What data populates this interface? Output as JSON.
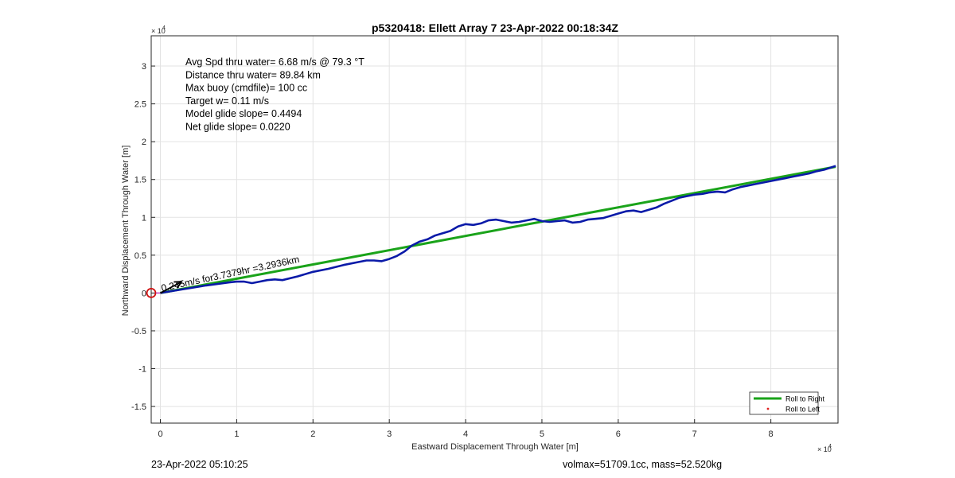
{
  "chart_data": {
    "type": "line",
    "title": "p5320418: Ellett Array 7 23-Apr-2022 00:18:34Z",
    "xlabel": "Eastward Displacement Through Water [m]",
    "ylabel": "Northward Displacement Through Water [m]",
    "x_exponent_label": "× 10",
    "x_exponent_power": "4",
    "y_exponent_label": "× 10",
    "y_exponent_power": "4",
    "xlim": [
      -0.12,
      8.88
    ],
    "ylim": [
      -1.72,
      3.4
    ],
    "xticks": [
      0,
      1,
      2,
      3,
      4,
      5,
      6,
      7,
      8
    ],
    "yticks": [
      -1.5,
      -1,
      -0.5,
      0,
      0.5,
      1,
      1.5,
      2,
      2.5,
      3
    ],
    "xtick_labels": [
      "0",
      "1",
      "2",
      "3",
      "4",
      "5",
      "6",
      "7",
      "8"
    ],
    "ytick_labels": [
      "-1.5",
      "-1",
      "-0.5",
      "0",
      "0.5",
      "1",
      "1.5",
      "2",
      "2.5",
      "3"
    ],
    "grid": true,
    "legend_position": "bottom-right",
    "series": [
      {
        "name": "Roll to Right",
        "color": "#1aa31a",
        "x": [
          0.0,
          8.85
        ],
        "y": [
          0.0,
          1.67
        ]
      },
      {
        "color": "#0a1aa8",
        "x": [
          0.0,
          0.3,
          0.6,
          0.9,
          1.0,
          1.1,
          1.2,
          1.3,
          1.4,
          1.5,
          1.6,
          1.8,
          2.0,
          2.2,
          2.4,
          2.6,
          2.7,
          2.8,
          2.9,
          3.0,
          3.1,
          3.2,
          3.3,
          3.4,
          3.5,
          3.6,
          3.7,
          3.8,
          3.9,
          4.0,
          4.1,
          4.2,
          4.3,
          4.4,
          4.5,
          4.6,
          4.7,
          4.8,
          4.9,
          5.0,
          5.1,
          5.2,
          5.3,
          5.4,
          5.5,
          5.6,
          5.7,
          5.8,
          5.9,
          6.0,
          6.1,
          6.2,
          6.3,
          6.4,
          6.5,
          6.6,
          6.7,
          6.8,
          6.9,
          7.0,
          7.1,
          7.2,
          7.3,
          7.4,
          7.5,
          7.6,
          7.7,
          7.8,
          7.9,
          8.0,
          8.1,
          8.2,
          8.3,
          8.4,
          8.5,
          8.6,
          8.7,
          8.85
        ],
        "y": [
          0.0,
          0.05,
          0.1,
          0.14,
          0.15,
          0.15,
          0.13,
          0.15,
          0.17,
          0.18,
          0.17,
          0.22,
          0.28,
          0.32,
          0.37,
          0.41,
          0.43,
          0.43,
          0.42,
          0.45,
          0.49,
          0.55,
          0.63,
          0.68,
          0.71,
          0.76,
          0.79,
          0.82,
          0.88,
          0.91,
          0.9,
          0.92,
          0.96,
          0.97,
          0.95,
          0.93,
          0.94,
          0.96,
          0.98,
          0.95,
          0.94,
          0.95,
          0.96,
          0.93,
          0.94,
          0.97,
          0.98,
          0.99,
          1.02,
          1.05,
          1.08,
          1.09,
          1.07,
          1.1,
          1.13,
          1.18,
          1.22,
          1.26,
          1.28,
          1.3,
          1.31,
          1.33,
          1.34,
          1.33,
          1.37,
          1.4,
          1.42,
          1.44,
          1.46,
          1.48,
          1.5,
          1.52,
          1.54,
          1.56,
          1.58,
          1.61,
          1.63,
          1.68
        ]
      },
      {
        "name": "Roll to Left",
        "color": "#e02020",
        "x": [],
        "y": []
      }
    ],
    "annotations": [
      "Avg Spd thru water=  6.68 m/s @  79.3 °T",
      "Distance thru water= 89.84 km",
      "Max buoy (cmdfile)= 100 cc",
      "Target w= 0.11 m/s",
      "Model glide slope= 0.4494",
      "Net glide slope= 0.0220"
    ],
    "arrow_label": "0.245m/s for3.7379hr =3.2936km",
    "start_marker": {
      "x": -0.12,
      "y": 0.0
    },
    "arrow_vector": {
      "dx": 0.28,
      "dy": 0.15
    }
  },
  "footer": {
    "left": "23-Apr-2022 05:10:25",
    "right": "volmax=51709.1cc, mass=52.520kg"
  }
}
